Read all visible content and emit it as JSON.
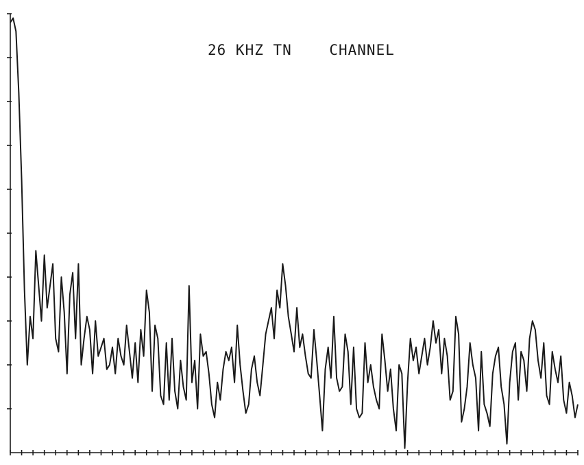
{
  "chart_data": {
    "type": "line",
    "title": "26 KHZ TN    CHANNEL",
    "xlabel": "",
    "ylabel": "",
    "xlim": [
      0,
      100
    ],
    "ylim": [
      0,
      10
    ],
    "x_tick_count": 51,
    "y_tick_count": 10,
    "grid": false,
    "colors": {
      "trace": "#1a1a1a",
      "axis": "#1a1a1a",
      "background": "#ffffff"
    },
    "series": [
      {
        "x": [
          0,
          0.5,
          1,
          1.5,
          2,
          2.5,
          3,
          3.5,
          4,
          4.5,
          5,
          5.5,
          6,
          6.5,
          7,
          7.5,
          8,
          8.5,
          9,
          9.5,
          10,
          10.5,
          11,
          11.5,
          12,
          12.5,
          13,
          13.5,
          14,
          14.5,
          15,
          15.5,
          16,
          16.5,
          17,
          17.5,
          18,
          18.5,
          19,
          19.5,
          20,
          20.5,
          21,
          21.5,
          22,
          22.5,
          23,
          23.5,
          24,
          24.5,
          25,
          25.5,
          26,
          26.5,
          27,
          27.5,
          28,
          28.5,
          29,
          29.5,
          30,
          30.5,
          31,
          31.5,
          32,
          32.5,
          33,
          33.5,
          34,
          34.5,
          35,
          35.5,
          36,
          36.5,
          37,
          37.5,
          38,
          38.5,
          39,
          39.5,
          40,
          40.5,
          41,
          41.5,
          42,
          42.5,
          43,
          43.5,
          44,
          44.5,
          45,
          45.5,
          46,
          46.5,
          47,
          47.5,
          48,
          48.5,
          49,
          49.5,
          50,
          50.5,
          51,
          51.5,
          52,
          52.5,
          53,
          53.5,
          54,
          54.5,
          55,
          55.5,
          56,
          56.5,
          57,
          57.5,
          58,
          58.5,
          59,
          59.5,
          60,
          60.5,
          61,
          61.5,
          62,
          62.5,
          63,
          63.5,
          64,
          64.5,
          65,
          65.5,
          66,
          66.5,
          67,
          67.5,
          68,
          68.5,
          69,
          69.5,
          70,
          70.5,
          71,
          71.5,
          72,
          72.5,
          73,
          73.5,
          74,
          74.5,
          75,
          75.5,
          76,
          76.5,
          77,
          77.5,
          78,
          78.5,
          79,
          79.5,
          80,
          80.5,
          81,
          81.5,
          82,
          82.5,
          83,
          83.5,
          84,
          84.5,
          85,
          85.5,
          86,
          86.5,
          87,
          87.5,
          88,
          88.5,
          89,
          89.5,
          90,
          90.5,
          91,
          91.5,
          92,
          92.5,
          93,
          93.5,
          94,
          94.5,
          95,
          95.5,
          96,
          96.5,
          97,
          97.5,
          98,
          98.5,
          99,
          99.5,
          100
        ],
        "y": [
          9.8,
          9.9,
          9.6,
          8.2,
          6.2,
          3.7,
          2.0,
          3.1,
          2.6,
          4.6,
          3.8,
          3.0,
          4.5,
          3.3,
          3.8,
          4.3,
          2.6,
          2.3,
          4.0,
          3.2,
          1.8,
          3.6,
          4.1,
          2.6,
          4.3,
          2.0,
          2.6,
          3.1,
          2.8,
          1.8,
          3.0,
          2.2,
          2.4,
          2.6,
          1.9,
          2.0,
          2.4,
          1.8,
          2.6,
          2.2,
          2.0,
          2.9,
          2.3,
          1.7,
          2.5,
          1.6,
          2.8,
          2.2,
          3.7,
          3.2,
          1.4,
          2.9,
          2.6,
          1.3,
          1.1,
          2.5,
          1.2,
          2.6,
          1.4,
          1.0,
          2.1,
          1.5,
          1.2,
          3.8,
          1.6,
          2.1,
          1.0,
          2.7,
          2.2,
          2.3,
          1.8,
          1.1,
          0.8,
          1.6,
          1.2,
          1.9,
          2.3,
          2.1,
          2.4,
          1.6,
          2.9,
          2.0,
          1.4,
          0.9,
          1.1,
          1.9,
          2.2,
          1.6,
          1.3,
          2.0,
          2.7,
          3.0,
          3.3,
          2.6,
          3.7,
          3.3,
          4.3,
          3.8,
          3.1,
          2.7,
          2.3,
          3.3,
          2.4,
          2.7,
          2.2,
          1.8,
          1.7,
          2.8,
          2.1,
          1.3,
          0.5,
          1.9,
          2.4,
          1.7,
          3.1,
          1.7,
          1.4,
          1.5,
          2.7,
          2.3,
          1.1,
          2.4,
          1.0,
          0.8,
          0.9,
          2.5,
          1.6,
          2.0,
          1.5,
          1.2,
          1.0,
          2.7,
          2.1,
          1.4,
          1.9,
          1.0,
          0.5,
          2.0,
          1.8,
          0.1,
          1.6,
          2.6,
          2.1,
          2.4,
          1.8,
          2.2,
          2.6,
          2.0,
          2.4,
          3.0,
          2.5,
          2.8,
          1.8,
          2.6,
          2.2,
          1.2,
          1.4,
          3.1,
          2.7,
          0.7,
          1.0,
          1.5,
          2.5,
          2.0,
          1.7,
          0.5,
          2.3,
          1.1,
          0.9,
          0.6,
          1.8,
          2.2,
          2.4,
          1.5,
          1.1,
          0.2,
          1.6,
          2.3,
          2.5,
          1.2,
          2.3,
          2.1,
          1.4,
          2.6,
          3.0,
          2.8,
          2.1,
          1.7,
          2.5,
          1.3,
          1.1,
          2.3,
          1.9,
          1.6,
          2.2,
          1.2,
          0.9,
          1.6,
          1.3,
          0.8,
          1.1
        ]
      }
    ]
  }
}
